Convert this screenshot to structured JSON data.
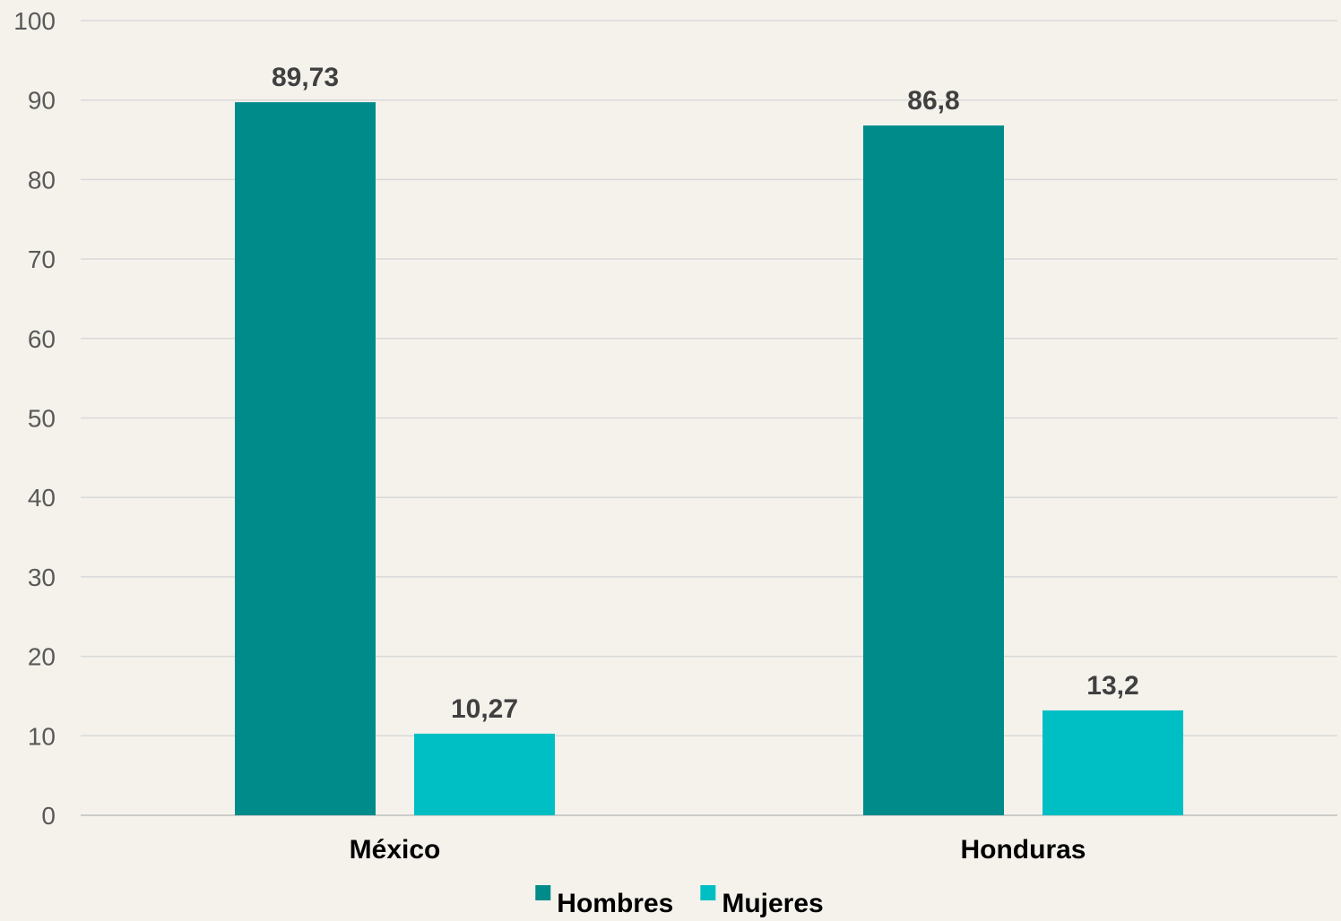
{
  "chart_data": {
    "type": "bar",
    "categories": [
      "México",
      "Honduras"
    ],
    "series": [
      {
        "name": "Hombres",
        "values": [
          89.73,
          86.8
        ],
        "labels": [
          "89,73",
          "86,8"
        ],
        "color": "#008b8b"
      },
      {
        "name": "Mujeres",
        "values": [
          10.27,
          13.2
        ],
        "labels": [
          "10,27",
          "13,2"
        ],
        "color": "#00bfc4"
      }
    ],
    "yticks": [
      "0",
      "10",
      "20",
      "30",
      "40",
      "50",
      "60",
      "70",
      "80",
      "90",
      "100"
    ],
    "ylim": [
      0,
      100
    ],
    "title": "",
    "xlabel": "",
    "ylabel": "",
    "grid": true,
    "legend_position": "bottom"
  },
  "colors": {
    "background": "#f5f2ec",
    "grid": "#d9d9d9",
    "axis": "#bfbfbf"
  }
}
